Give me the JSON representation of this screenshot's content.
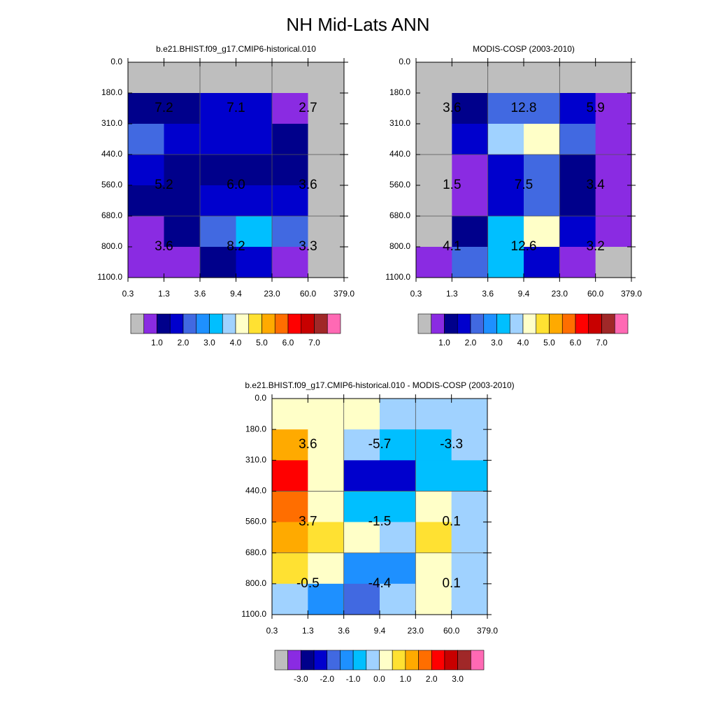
{
  "title": "NH Mid-Lats ANN",
  "chart_data": [
    {
      "type": "heatmap",
      "title": "b.e21.BHIST.f09_g17.CMIP6-historical.010",
      "x": [
        "0.3",
        "1.3",
        "3.6",
        "9.4",
        "23.0",
        "60.0",
        "379.0"
      ],
      "y": [
        "0.0",
        "180.0",
        "310.0",
        "440.0",
        "560.0",
        "680.0",
        "800.0",
        "1100.0"
      ],
      "cells": [
        [
          "#bebebe",
          "#bebebe",
          "#bebebe",
          "#bebebe",
          "#bebebe",
          "#bebebe"
        ],
        [
          "#00008b",
          "#00008b",
          "#0000cd",
          "#0000cd",
          "#8a2be2",
          "#bebebe"
        ],
        [
          "#4169e1",
          "#0000cd",
          "#0000cd",
          "#0000cd",
          "#00008b",
          "#bebebe"
        ],
        [
          "#0000cd",
          "#00008b",
          "#00008b",
          "#00008b",
          "#00008b",
          "#bebebe"
        ],
        [
          "#00008b",
          "#00008b",
          "#0000cd",
          "#0000cd",
          "#0000cd",
          "#bebebe"
        ],
        [
          "#8a2be2",
          "#00008b",
          "#4169e1",
          "#00bfff",
          "#4169e1",
          "#bebebe"
        ],
        [
          "#8a2be2",
          "#8a2be2",
          "#00008b",
          "#0000cd",
          "#8a2be2",
          "#bebebe"
        ]
      ],
      "annotations": [
        [
          "7.2",
          "7.1",
          "2.7"
        ],
        [
          "5.2",
          "6.0",
          "3.6"
        ],
        [
          "3.6",
          "8.2",
          "3.3"
        ]
      ],
      "colorbar": {
        "colors": [
          "#bebebe",
          "#8a2be2",
          "#00008b",
          "#0000cd",
          "#4169e1",
          "#1e90ff",
          "#00bfff",
          "#a0d2ff",
          "#ffffc8",
          "#ffe132",
          "#ffaa00",
          "#ff6e00",
          "#ff0000",
          "#c80000",
          "#a02828",
          "#ff69b4"
        ],
        "labels": [
          "1.0",
          "2.0",
          "3.0",
          "4.0",
          "5.0",
          "6.0",
          "7.0"
        ]
      }
    },
    {
      "type": "heatmap",
      "title": "MODIS-COSP (2003-2010)",
      "x": [
        "0.3",
        "1.3",
        "3.6",
        "9.4",
        "23.0",
        "60.0",
        "379.0"
      ],
      "y": [
        "0.0",
        "180.0",
        "310.0",
        "440.0",
        "560.0",
        "680.0",
        "800.0",
        "1100.0"
      ],
      "cells": [
        [
          "#bebebe",
          "#bebebe",
          "#bebebe",
          "#bebebe",
          "#bebebe",
          "#bebebe"
        ],
        [
          "#bebebe",
          "#00008b",
          "#4169e1",
          "#4169e1",
          "#0000cd",
          "#8a2be2"
        ],
        [
          "#bebebe",
          "#0000cd",
          "#a0d2ff",
          "#ffffc8",
          "#4169e1",
          "#8a2be2"
        ],
        [
          "#bebebe",
          "#8a2be2",
          "#0000cd",
          "#4169e1",
          "#00008b",
          "#8a2be2"
        ],
        [
          "#bebebe",
          "#8a2be2",
          "#0000cd",
          "#4169e1",
          "#00008b",
          "#8a2be2"
        ],
        [
          "#bebebe",
          "#00008b",
          "#00bfff",
          "#ffffc8",
          "#0000cd",
          "#8a2be2"
        ],
        [
          "#8a2be2",
          "#4169e1",
          "#00bfff",
          "#0000cd",
          "#8a2be2",
          "#bebebe"
        ]
      ],
      "annotations": [
        [
          "3.6",
          "12.8",
          "5.9"
        ],
        [
          "1.5",
          "7.5",
          "3.4"
        ],
        [
          "4.1",
          "12.6",
          "3.2"
        ]
      ],
      "colorbar": {
        "colors": [
          "#bebebe",
          "#8a2be2",
          "#00008b",
          "#0000cd",
          "#4169e1",
          "#1e90ff",
          "#00bfff",
          "#a0d2ff",
          "#ffffc8",
          "#ffe132",
          "#ffaa00",
          "#ff6e00",
          "#ff0000",
          "#c80000",
          "#a02828",
          "#ff69b4"
        ],
        "labels": [
          "1.0",
          "2.0",
          "3.0",
          "4.0",
          "5.0",
          "6.0",
          "7.0"
        ]
      }
    },
    {
      "type": "heatmap",
      "title": "b.e21.BHIST.f09_g17.CMIP6-historical.010 - MODIS-COSP (2003-2010)",
      "x": [
        "0.3",
        "1.3",
        "3.6",
        "9.4",
        "23.0",
        "60.0",
        "379.0"
      ],
      "y": [
        "0.0",
        "180.0",
        "310.0",
        "440.0",
        "560.0",
        "680.0",
        "800.0",
        "1100.0"
      ],
      "cells": [
        [
          "#ffffc8",
          "#ffffc8",
          "#ffffc8",
          "#a0d2ff",
          "#a0d2ff",
          "#a0d2ff"
        ],
        [
          "#ffaa00",
          "#ffffc8",
          "#a0d2ff",
          "#00bfff",
          "#00bfff",
          "#a0d2ff"
        ],
        [
          "#ff0000",
          "#ffffc8",
          "#0000cd",
          "#0000cd",
          "#00bfff",
          "#00bfff"
        ],
        [
          "#ff6e00",
          "#ffffc8",
          "#00bfff",
          "#00bfff",
          "#ffffc8",
          "#a0d2ff"
        ],
        [
          "#ffaa00",
          "#ffe132",
          "#ffffc8",
          "#a0d2ff",
          "#ffe132",
          "#a0d2ff"
        ],
        [
          "#ffe132",
          "#ffffc8",
          "#1e90ff",
          "#1e90ff",
          "#ffffc8",
          "#a0d2ff"
        ],
        [
          "#a0d2ff",
          "#1e90ff",
          "#4169e1",
          "#a0d2ff",
          "#ffffc8",
          "#a0d2ff"
        ]
      ],
      "annotations": [
        [
          "3.6",
          "-5.7",
          "-3.3"
        ],
        [
          "3.7",
          "-1.5",
          "0.1"
        ],
        [
          "-0.5",
          "-4.4",
          "0.1"
        ]
      ],
      "colorbar": {
        "colors": [
          "#bebebe",
          "#8a2be2",
          "#00008b",
          "#0000cd",
          "#4169e1",
          "#1e90ff",
          "#00bfff",
          "#a0d2ff",
          "#ffffc8",
          "#ffe132",
          "#ffaa00",
          "#ff6e00",
          "#ff0000",
          "#c80000",
          "#a02828",
          "#ff69b4"
        ],
        "labels": [
          "-3.0",
          "-2.0",
          "-1.0",
          "0.0",
          "1.0",
          "2.0",
          "3.0"
        ]
      }
    }
  ]
}
